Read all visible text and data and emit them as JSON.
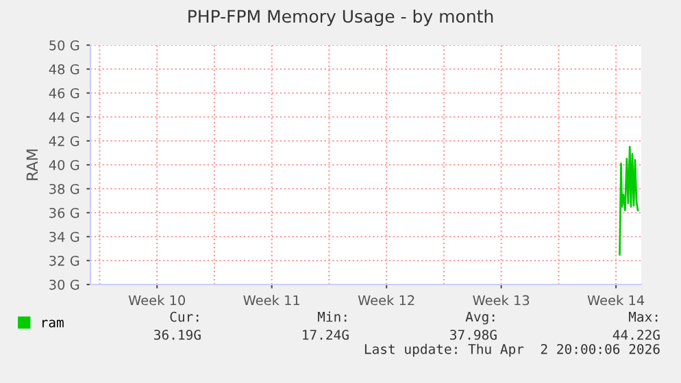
{
  "chart_data": {
    "type": "line",
    "title": "PHP-FPM Memory Usage - by month",
    "ylabel": "RAM",
    "series": [
      {
        "name": "ram",
        "color": "#00cc00",
        "x": [
          "2026-04-01T17:24",
          "2026-04-01T19:24",
          "2026-04-01T20:42",
          "2026-04-01T22:48",
          "2026-04-02T01:18",
          "2026-04-02T03:48",
          "2026-04-02T05:48",
          "2026-04-02T08:12",
          "2026-04-02T09:48",
          "2026-04-02T11:54",
          "2026-04-02T13:54",
          "2026-04-02T15:54",
          "2026-04-02T17:54",
          "2026-04-02T20:00"
        ],
        "values": [
          32.5,
          40.1,
          36.5,
          37.5,
          36.2,
          40.5,
          36.8,
          41.5,
          36.5,
          40.9,
          36.6,
          40.4,
          37.0,
          36.2
        ]
      }
    ],
    "xlim": [
      "2026-02-28T10:30",
      "2026-04-03T01:00"
    ],
    "xticks": [
      {
        "value": "2026-03-01",
        "label": null
      },
      {
        "value": "2026-03-04T12:00",
        "label": "Week 10"
      },
      {
        "value": "2026-03-08",
        "label": null
      },
      {
        "value": "2026-03-11T12:00",
        "label": "Week 11"
      },
      {
        "value": "2026-03-15",
        "label": null
      },
      {
        "value": "2026-03-18T12:00",
        "label": "Week 12"
      },
      {
        "value": "2026-03-22",
        "label": null
      },
      {
        "value": "2026-03-25T12:00",
        "label": "Week 13"
      },
      {
        "value": "2026-03-29",
        "label": null
      },
      {
        "value": "2026-04-01T12:00",
        "label": "Week 14"
      }
    ],
    "ylim": [
      30,
      50
    ],
    "yticks": [
      {
        "value": 30,
        "label": "30 G"
      },
      {
        "value": 32,
        "label": "32 G"
      },
      {
        "value": 34,
        "label": "34 G"
      },
      {
        "value": 36,
        "label": "36 G"
      },
      {
        "value": 38,
        "label": "38 G"
      },
      {
        "value": 40,
        "label": "40 G"
      },
      {
        "value": 42,
        "label": "42 G"
      },
      {
        "value": 44,
        "label": "44 G"
      },
      {
        "value": 46,
        "label": "46 G"
      },
      {
        "value": 48,
        "label": "48 G"
      },
      {
        "value": 50,
        "label": "50 G"
      }
    ],
    "grid": true,
    "legend": "bottom left",
    "marker": "none",
    "line_style": "solid",
    "annotations": [
      "Cur:\n36.19G",
      "Min:\n17.24G",
      "Avg:\n37.98G",
      "Max:\n44.22G",
      "Last update: Thu Apr  2 20:00:06 2026"
    ]
  }
}
